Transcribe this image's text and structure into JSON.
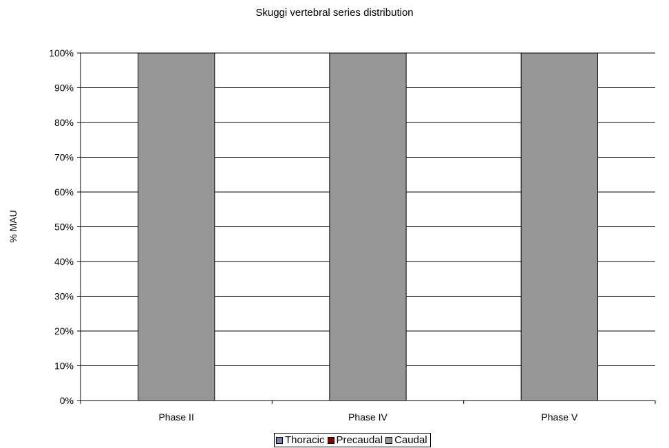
{
  "chart_data": {
    "type": "bar",
    "stacked": true,
    "title": "Skuggi vertebral series distribution",
    "xlabel": "",
    "ylabel": "% MAU",
    "categories": [
      "Phase II",
      "Phase IV",
      "Phase V"
    ],
    "series": [
      {
        "name": "Thoracic",
        "color": "#8080b0",
        "values": [
          0,
          0,
          0
        ]
      },
      {
        "name": "Precaudal",
        "color": "#800000",
        "values": [
          0,
          0,
          0
        ]
      },
      {
        "name": "Caudal",
        "color": "#969696",
        "values": [
          100,
          100,
          100
        ]
      }
    ],
    "yticks": [
      "0%",
      "10%",
      "20%",
      "30%",
      "40%",
      "50%",
      "60%",
      "70%",
      "80%",
      "90%",
      "100%"
    ],
    "ylim": [
      0,
      100
    ],
    "grid": true,
    "legend_position": "bottom"
  }
}
